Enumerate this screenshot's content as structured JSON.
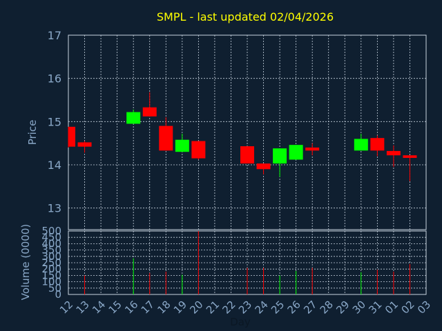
{
  "chart_data": {
    "type": "candlestick",
    "title": "SMPL - last updated 02/04/2026",
    "xlabel": "Day",
    "ylabel": "Price",
    "volume_label": "Volume (0000)",
    "ylim": [
      12.5,
      17
    ],
    "yticks": [
      13,
      14,
      15,
      16,
      17
    ],
    "volume_ylim": [
      0,
      500
    ],
    "volume_ticks": [
      0,
      50,
      100,
      150,
      200,
      250,
      300,
      350,
      400,
      450,
      500
    ],
    "x_tick_labels": [
      "12",
      "13",
      "14",
      "15",
      "16",
      "17",
      "18",
      "19",
      "20",
      "21",
      "22",
      "23",
      "24",
      "25",
      "26",
      "27",
      "28",
      "29",
      "30",
      "31",
      "01",
      "02",
      "03"
    ],
    "grid": true,
    "up_color": "#00ff00",
    "down_color": "#ff0000",
    "candles": [
      {
        "day": "12",
        "open": 14.88,
        "high": 14.88,
        "low": 14.4,
        "close": 14.42,
        "volume": 0
      },
      {
        "day": "13",
        "open": 14.52,
        "high": 14.55,
        "low": 14.28,
        "close": 14.42,
        "volume": 150
      },
      {
        "day": "16",
        "open": 14.95,
        "high": 15.28,
        "low": 14.95,
        "close": 15.22,
        "volume": 285
      },
      {
        "day": "17",
        "open": 15.33,
        "high": 15.68,
        "low": 15.12,
        "close": 15.12,
        "volume": 170
      },
      {
        "day": "18",
        "open": 14.9,
        "high": 15.1,
        "low": 14.33,
        "close": 14.33,
        "volume": 180
      },
      {
        "day": "19",
        "open": 14.3,
        "high": 14.72,
        "low": 14.3,
        "close": 14.58,
        "volume": 155
      },
      {
        "day": "20",
        "open": 14.55,
        "high": 14.55,
        "low": 14.12,
        "close": 14.15,
        "volume": 500
      },
      {
        "day": "23",
        "open": 14.43,
        "high": 14.43,
        "low": 14.03,
        "close": 14.03,
        "volume": 210
      },
      {
        "day": "24",
        "open": 14.03,
        "high": 14.03,
        "low": 13.78,
        "close": 13.9,
        "volume": 210
      },
      {
        "day": "25",
        "open": 14.03,
        "high": 14.38,
        "low": 13.72,
        "close": 14.38,
        "volume": 150
      },
      {
        "day": "26",
        "open": 14.12,
        "high": 14.46,
        "low": 14.12,
        "close": 14.46,
        "volume": 185
      },
      {
        "day": "27",
        "open": 14.4,
        "high": 14.5,
        "low": 14.22,
        "close": 14.33,
        "volume": 210
      },
      {
        "day": "30",
        "open": 14.33,
        "high": 14.72,
        "low": 14.33,
        "close": 14.6,
        "volume": 175
      },
      {
        "day": "31",
        "open": 14.62,
        "high": 14.68,
        "low": 14.2,
        "close": 14.33,
        "volume": 195
      },
      {
        "day": "01",
        "open": 14.32,
        "high": 14.45,
        "low": 13.95,
        "close": 14.22,
        "volume": 180
      },
      {
        "day": "02",
        "open": 14.22,
        "high": 14.22,
        "low": 13.62,
        "close": 14.16,
        "volume": 240
      }
    ]
  }
}
